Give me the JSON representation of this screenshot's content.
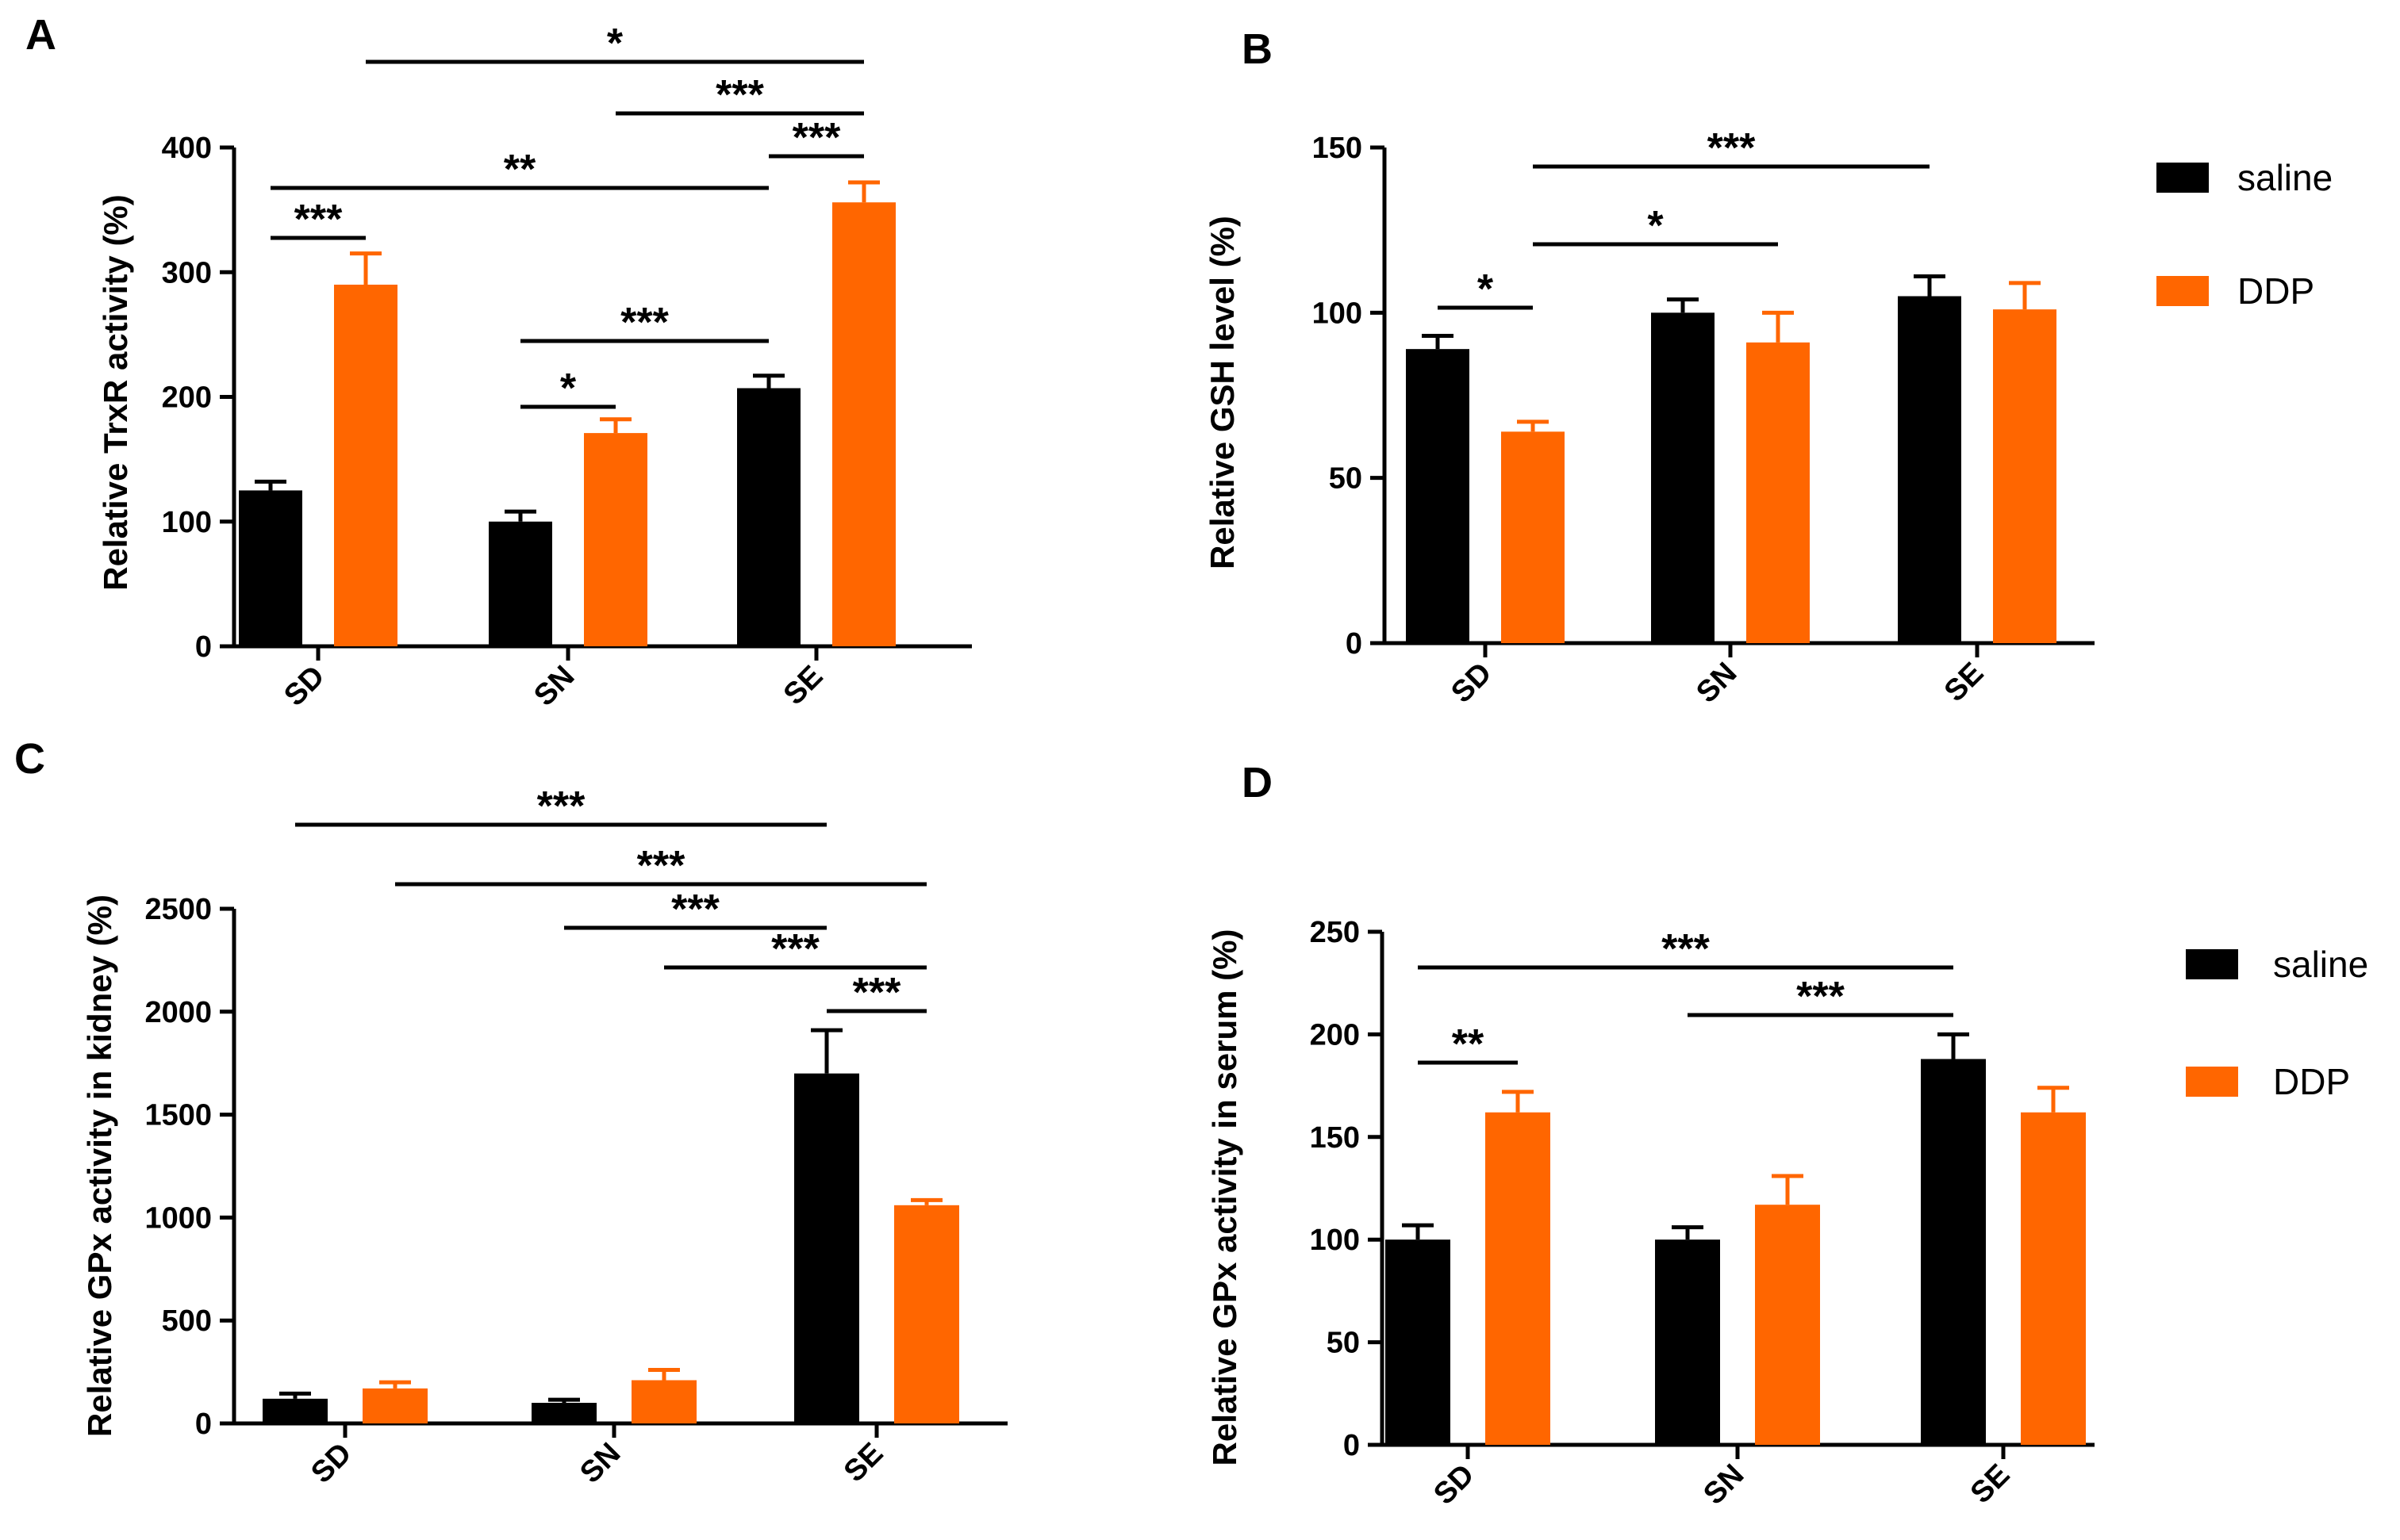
{
  "legend": [
    "saline",
    "DDP"
  ],
  "colors": {
    "saline": "#000000",
    "DDP": "#FF6600"
  },
  "chart_data": [
    {
      "panel": "A",
      "type": "bar",
      "categories": [
        "SD",
        "SN",
        "SE"
      ],
      "ylabel": "Relative TrxR activity (%)",
      "ylim": [
        0,
        400
      ],
      "yticks": [
        0,
        100,
        200,
        300,
        400
      ],
      "series": [
        {
          "name": "saline",
          "values": [
            125,
            100,
            207
          ],
          "errors": [
            7,
            8,
            10
          ]
        },
        {
          "name": "DDP",
          "values": [
            290,
            171,
            356
          ],
          "errors": [
            25,
            11,
            16
          ]
        }
      ],
      "significance": [
        {
          "from": [
            0,
            0
          ],
          "to": [
            0,
            1
          ],
          "label": "***"
        },
        {
          "from": [
            0,
            0
          ],
          "to": [
            2,
            0
          ],
          "label": "**"
        },
        {
          "from": [
            1,
            0
          ],
          "to": [
            1,
            1
          ],
          "label": "*"
        },
        {
          "from": [
            1,
            0
          ],
          "to": [
            2,
            0
          ],
          "label": "***"
        },
        {
          "from": [
            2,
            0
          ],
          "to": [
            2,
            1
          ],
          "label": "***"
        },
        {
          "from": [
            1,
            1
          ],
          "to": [
            2,
            1
          ],
          "label": "***"
        },
        {
          "from": [
            0,
            1
          ],
          "to": [
            2,
            1
          ],
          "label": "*"
        }
      ]
    },
    {
      "panel": "B",
      "type": "bar",
      "categories": [
        "SD",
        "SN",
        "SE"
      ],
      "ylabel": "Relative GSH level (%)",
      "ylim": [
        0,
        150
      ],
      "yticks": [
        0,
        50,
        100,
        150
      ],
      "series": [
        {
          "name": "saline",
          "values": [
            89,
            100,
            105
          ],
          "errors": [
            4,
            4,
            6
          ]
        },
        {
          "name": "DDP",
          "values": [
            64,
            91,
            101
          ],
          "errors": [
            3,
            9,
            8
          ]
        }
      ],
      "significance": [
        {
          "from": [
            0,
            0
          ],
          "to": [
            0,
            1
          ],
          "label": "*"
        },
        {
          "from": [
            0,
            1
          ],
          "to": [
            1,
            1
          ],
          "label": "*"
        },
        {
          "from": [
            0,
            1
          ],
          "to": [
            2,
            0
          ],
          "label": "***"
        }
      ]
    },
    {
      "panel": "C",
      "type": "bar",
      "categories": [
        "SD",
        "SN",
        "SE"
      ],
      "ylabel": "Relative GPx activity in kidney (%)",
      "ylim": [
        0,
        2500
      ],
      "yticks": [
        0,
        500,
        1000,
        1500,
        2000,
        2500
      ],
      "series": [
        {
          "name": "saline",
          "values": [
            120,
            100,
            1700
          ],
          "errors": [
            25,
            15,
            210
          ]
        },
        {
          "name": "DDP",
          "values": [
            170,
            210,
            1060
          ],
          "errors": [
            30,
            50,
            25
          ]
        }
      ],
      "significance": [
        {
          "from": [
            0,
            0
          ],
          "to": [
            2,
            0
          ],
          "label": "***"
        },
        {
          "from": [
            0,
            1
          ],
          "to": [
            2,
            1
          ],
          "label": "***"
        },
        {
          "from": [
            1,
            0
          ],
          "to": [
            2,
            0
          ],
          "label": "***"
        },
        {
          "from": [
            1,
            1
          ],
          "to": [
            2,
            1
          ],
          "label": "***"
        },
        {
          "from": [
            2,
            0
          ],
          "to": [
            2,
            1
          ],
          "label": "***"
        }
      ]
    },
    {
      "panel": "D",
      "type": "bar",
      "categories": [
        "SD",
        "SN",
        "SE"
      ],
      "ylabel": "Relative GPx activity in serum (%)",
      "ylim": [
        0,
        250
      ],
      "yticks": [
        0,
        50,
        100,
        150,
        200,
        250
      ],
      "series": [
        {
          "name": "saline",
          "values": [
            100,
            100,
            188
          ],
          "errors": [
            7,
            6,
            12
          ]
        },
        {
          "name": "DDP",
          "values": [
            162,
            117,
            162
          ],
          "errors": [
            10,
            14,
            12
          ]
        }
      ],
      "significance": [
        {
          "from": [
            0,
            0
          ],
          "to": [
            0,
            1
          ],
          "label": "**"
        },
        {
          "from": [
            0,
            0
          ],
          "to": [
            2,
            0
          ],
          "label": "***"
        },
        {
          "from": [
            1,
            0
          ],
          "to": [
            2,
            0
          ],
          "label": "***"
        }
      ]
    }
  ]
}
